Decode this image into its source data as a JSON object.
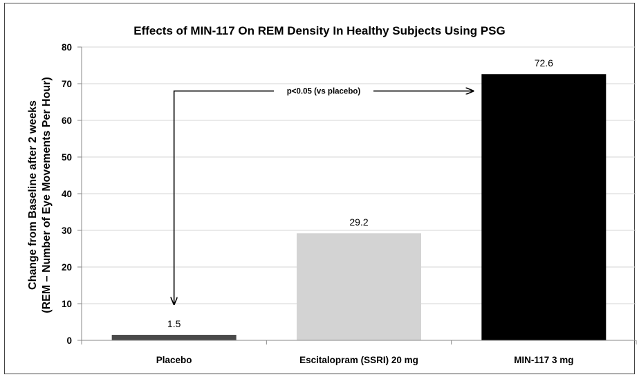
{
  "chart_data": {
    "type": "bar",
    "title": "Effects of MIN-117 On REM Density In Healthy Subjects Using PSG",
    "ylabel_lines": [
      "Change from Baseline after 2 weeks",
      "(REM – Number of Eye Movements Per Hour)"
    ],
    "xlabel": "",
    "categories": [
      "Placebo",
      "Escitalopram (SSRI) 20 mg",
      "MIN-117 3 mg"
    ],
    "values": [
      1.5,
      29.2,
      72.6
    ],
    "value_labels": [
      "1.5",
      "29.2",
      "72.6"
    ],
    "bar_colors": [
      "#4a4a4a",
      "#d3d3d3",
      "#000000"
    ],
    "ylim": [
      0,
      80
    ],
    "yticks": [
      0,
      10,
      20,
      30,
      40,
      50,
      60,
      70,
      80
    ],
    "grid": true,
    "annotation": {
      "text": "p<0.05 (vs placebo)",
      "from_category": "Placebo",
      "to_category": "MIN-117 3 mg",
      "y_value": 68
    }
  }
}
